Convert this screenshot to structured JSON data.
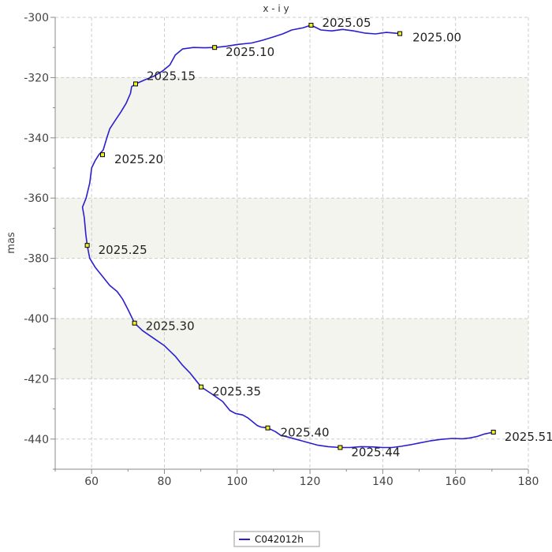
{
  "chart_data": {
    "type": "line",
    "title": "x - i y",
    "xlabel": "",
    "ylabel": "mas",
    "xlim": [
      50,
      180
    ],
    "ylim": [
      -450,
      -300
    ],
    "x_ticks": [
      60,
      80,
      100,
      120,
      140,
      160,
      180
    ],
    "y_ticks": [
      -300,
      -320,
      -340,
      -360,
      -380,
      -400,
      -420,
      -440
    ],
    "grid": true,
    "shaded_bands": [
      [
        -340,
        -320
      ],
      [
        -380,
        -360
      ],
      [
        -420,
        -400
      ]
    ],
    "legend_position": "bottom-center",
    "series": [
      {
        "name": "C042012h",
        "color": "#2a1fd0",
        "x": [
          144.7,
          141.0,
          138.0,
          135.0,
          132.0,
          129.0,
          126.0,
          123.0,
          120.3,
          118.0,
          115.0,
          112.5,
          110.0,
          107.0,
          104.0,
          100.0,
          97.0,
          94.0,
          91.0,
          88.0,
          85.0,
          83.0,
          81.5,
          79.5,
          77.0,
          74.5,
          72.1,
          71.0,
          70.7,
          69.5,
          68.0,
          66.5,
          65.0,
          64.2,
          63.2,
          62.0,
          61.0,
          60.0,
          59.5,
          58.5,
          57.5,
          58.0,
          58.4,
          58.8,
          59.5,
          61.0,
          63.0,
          65.0,
          67.0,
          68.5,
          70.0,
          71.8,
          74.0,
          77.0,
          80.0,
          83.0,
          85.0,
          87.0,
          90.1,
          93.0,
          96.0,
          98.0,
          99.5,
          101.5,
          103.0,
          104.5,
          105.5,
          106.5,
          108.4,
          110.5,
          112.0,
          113.5,
          116.0,
          119.0,
          122.0,
          125.0,
          128.3,
          131.0,
          134.0,
          137.0,
          140.0,
          142.5,
          145.0,
          147.5,
          150.0,
          153.0,
          156.0,
          159.0,
          162.0,
          164.0,
          166.0,
          168.0,
          170.4
        ],
        "y": [
          -305.4,
          -305.0,
          -305.5,
          -305.2,
          -304.5,
          -304.0,
          -304.5,
          -304.2,
          -302.6,
          -303.5,
          -304.2,
          -305.5,
          -306.5,
          -307.6,
          -308.5,
          -309.0,
          -309.6,
          -310.0,
          -310.1,
          -310.0,
          -310.5,
          -312.5,
          -315.8,
          -317.8,
          -319.6,
          -320.8,
          -322.1,
          -323.0,
          -325.2,
          -328.5,
          -331.5,
          -334.2,
          -337.0,
          -340.0,
          -344.0,
          -345.6,
          -347.5,
          -350.0,
          -355.0,
          -360.0,
          -363.0,
          -366.5,
          -372.0,
          -375.7,
          -380.0,
          -383.0,
          -386.0,
          -389.0,
          -391.0,
          -393.5,
          -397.0,
          -401.5,
          -404.0,
          -406.5,
          -409.0,
          -412.5,
          -415.5,
          -418.0,
          -422.7,
          -425.0,
          -427.5,
          -430.5,
          -431.5,
          -432.0,
          -433.0,
          -434.5,
          -435.5,
          -436.0,
          -436.3,
          -437.5,
          -438.8,
          -439.2,
          -440.0,
          -441.0,
          -442.0,
          -442.5,
          -442.8,
          -442.8,
          -442.5,
          -442.6,
          -442.8,
          -442.8,
          -442.4,
          -441.9,
          -441.3,
          -440.6,
          -440.1,
          -439.8,
          -439.9,
          -439.6,
          -439.1,
          -438.3,
          -437.7
        ],
        "markers": [
          {
            "label": "2025.00",
            "x": 144.7,
            "y": -305.4
          },
          {
            "label": "2025.05",
            "x": 120.3,
            "y": -302.6
          },
          {
            "label": "2025.10",
            "x": 93.8,
            "y": -310.0
          },
          {
            "label": "2025.15",
            "x": 72.1,
            "y": -322.1
          },
          {
            "label": "2025.20",
            "x": 63.0,
            "y": -345.6
          },
          {
            "label": "2025.25",
            "x": 58.8,
            "y": -375.7
          },
          {
            "label": "2025.30",
            "x": 71.8,
            "y": -401.5
          },
          {
            "label": "2025.35",
            "x": 90.1,
            "y": -422.7
          },
          {
            "label": "2025.40",
            "x": 108.4,
            "y": -436.3
          },
          {
            "label": "2025.44",
            "x": 128.3,
            "y": -442.8
          },
          {
            "label": "2025.51",
            "x": 170.4,
            "y": -437.7
          }
        ]
      }
    ]
  }
}
